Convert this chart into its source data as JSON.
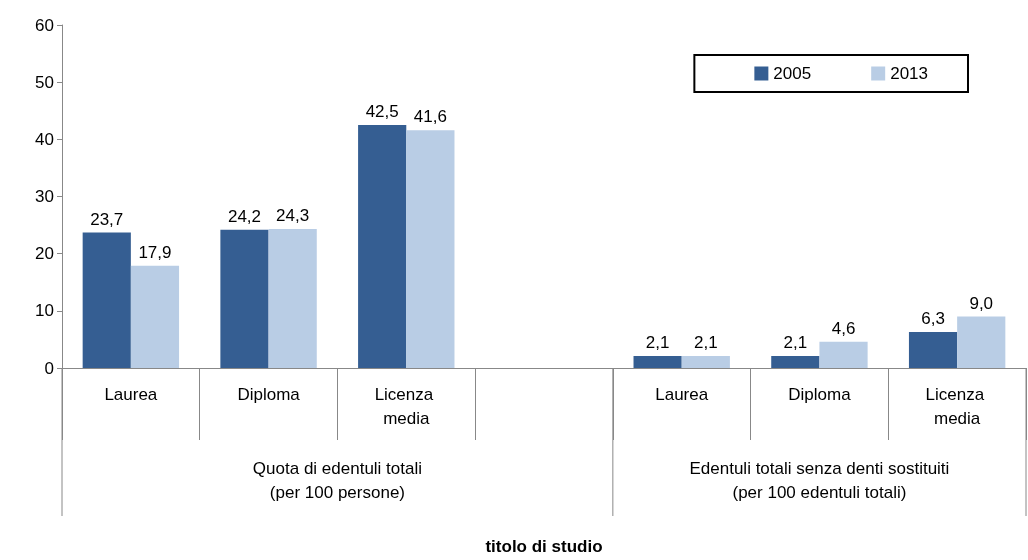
{
  "chart_data": {
    "type": "bar",
    "categories": [
      "Laurea",
      "Diploma",
      "Licenza media",
      null,
      "Laurea",
      "Diploma",
      "Licenza media"
    ],
    "series": [
      {
        "name": "2005",
        "color": "#355e92",
        "values": [
          23.7,
          24.2,
          42.5,
          null,
          2.1,
          2.1,
          6.3
        ],
        "value_labels": [
          "23,7",
          "24,2",
          "42,5",
          null,
          "2,1",
          "2,1",
          "6,3"
        ]
      },
      {
        "name": "2013",
        "color": "#b9cde5",
        "values": [
          17.9,
          24.3,
          41.6,
          null,
          2.1,
          4.6,
          9.0
        ],
        "value_labels": [
          "17,9",
          "24,3",
          "41,6",
          null,
          "2,1",
          "4,6",
          "9,0"
        ]
      }
    ],
    "annotations": [
      "Quota di edentuli totali (per 100 persone)",
      "Edentuli totali senza denti sostituiti (per 100 edentuli totali)",
      "titolo di studio"
    ],
    "ylim": [
      0,
      60
    ],
    "yticks": [
      0,
      10,
      20,
      30,
      40,
      50,
      60
    ],
    "grid": false,
    "legend": "top right"
  }
}
